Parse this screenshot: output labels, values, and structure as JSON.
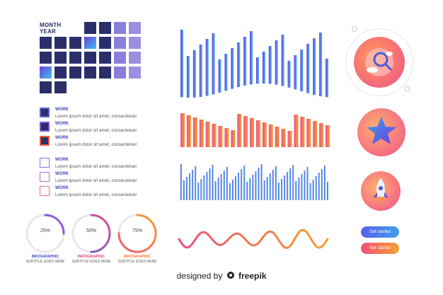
{
  "calendar": {
    "title_line1": "MONTH",
    "title_line2": "YEAR"
  },
  "legend": [
    {
      "title": "WORK",
      "desc": "Lorem ipsum dolor sit amet, consectetuer",
      "style": "filled",
      "color": "#5a63d6"
    },
    {
      "title": "WORK",
      "desc": "Lorem ipsum dolor sit amet, consectetuer",
      "style": "filled",
      "color": "#7a55d8"
    },
    {
      "title": "WORK",
      "desc": "Lorem ipsum dolor sit amet, consectetuer",
      "style": "filled",
      "color": "#f05a3a"
    },
    {
      "title": "WORK",
      "desc": "Lorem ipsum dolor sit amet, consectetuer",
      "style": "outline",
      "color": "#8a70e0"
    },
    {
      "title": "WORK",
      "desc": "Lorem ipsum dolor sit amet, consectetuer",
      "style": "outline",
      "color": "#b06ad8"
    },
    {
      "title": "WORK",
      "desc": "Lorem ipsum dolor sit amet, consectetuer",
      "style": "outline",
      "color": "#f07070"
    }
  ],
  "donuts": [
    {
      "value": "25%",
      "fraction": 0.25,
      "caption": "INFOGRAPHIC",
      "subtitle": "SUBTITLE GOES HERE",
      "caption_color": "#3b47b8"
    },
    {
      "value": "50%",
      "fraction": 0.5,
      "caption": "INFOGRAPHIC",
      "subtitle": "SUBTITLE GOES HERE",
      "caption_color": "#d6408a"
    },
    {
      "value": "75%",
      "fraction": 0.75,
      "caption": "INFOGRAPHIC",
      "subtitle": "SUBTITLE GOES HERE",
      "caption_color": "#f07a30"
    }
  ],
  "buttons": [
    {
      "label": "Get started",
      "color_from": "#5b5ee6",
      "color_to": "#3fa0f0"
    },
    {
      "label": "Get started",
      "color_from": "#f0507a",
      "color_to": "#f5a030"
    }
  ],
  "footer": {
    "prefix": "designed by",
    "brand": "freepik"
  },
  "icons": [
    "magnifier-cloud-icon",
    "star-icon",
    "rocket-icon",
    "freepik-logo-icon"
  ],
  "colors": {
    "navy": "#2a2f6b",
    "purple": "#6f68c8",
    "accent_orange": "#f5a030",
    "accent_pink": "#e8507e",
    "accent_blue": "#4a7ef0"
  }
}
